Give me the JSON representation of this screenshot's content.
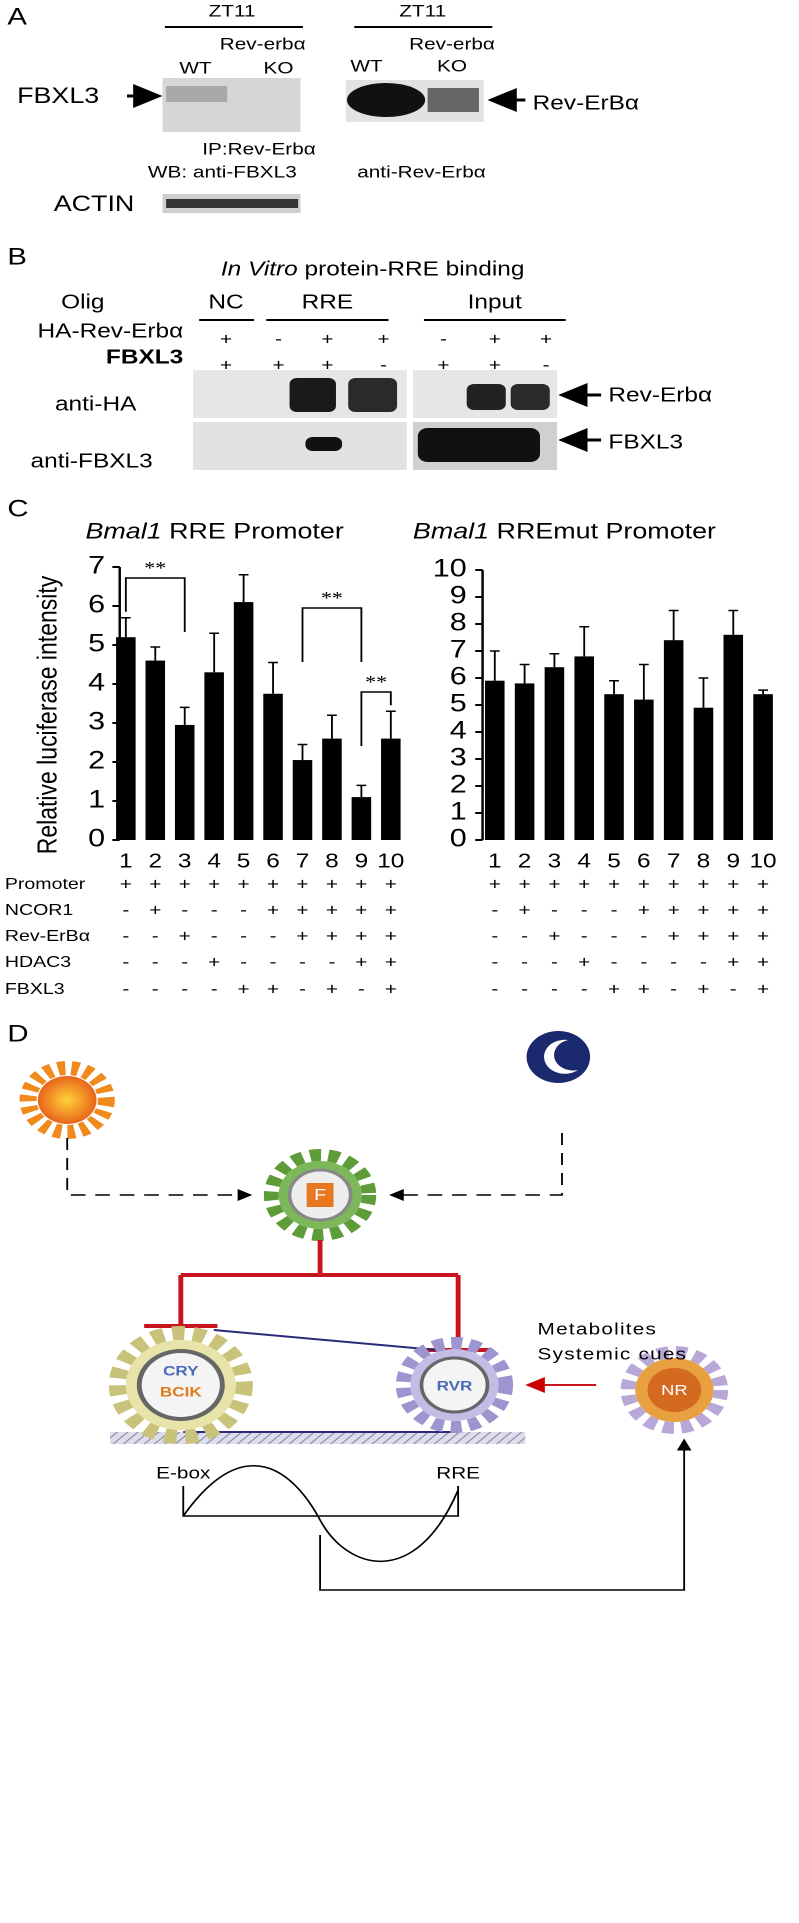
{
  "panel_a": {
    "label": "A",
    "left": {
      "time": "ZT11",
      "genotype": "Rev-erbα",
      "lanes": [
        "WT",
        "KO"
      ],
      "protein": "FBXL3",
      "wb": "WB: anti-FBXL3"
    },
    "right": {
      "time": "ZT11",
      "genotype": "Rev-erbα",
      "lanes": [
        "WT",
        "KO"
      ],
      "protein": "Rev-ErBα",
      "wb": "anti-Rev-Erbα"
    },
    "ip": "IP:Rev-Erbα",
    "loading": "ACTIN"
  },
  "panel_b": {
    "label": "B",
    "title_italic": "In Vitro",
    "title": "protein-RRE binding",
    "row_header": "Olig",
    "groups": [
      "NC",
      "RRE",
      "Input"
    ],
    "conditions": [
      {
        "label": "HA-Rev-Erbα",
        "signs": [
          "+",
          "-",
          "+",
          "+",
          "-",
          "+",
          "+"
        ]
      },
      {
        "label": "FBXL3",
        "signs": [
          "+",
          "+",
          "+",
          "-",
          "+",
          "+",
          "-"
        ]
      }
    ],
    "blots": [
      {
        "antibody": "anti-HA",
        "target": "Rev-Erbα"
      },
      {
        "antibody": "anti-FBXL3",
        "target": "FBXL3"
      }
    ]
  },
  "panel_c_label": "C",
  "chart_data": [
    {
      "type": "bar",
      "title_gene": "Bmal1",
      "title": "RRE Promoter",
      "ylabel": "Relative luciferase intensity",
      "categories": [
        "1",
        "2",
        "3",
        "4",
        "5",
        "6",
        "7",
        "8",
        "9",
        "10"
      ],
      "values": [
        5.2,
        4.6,
        2.95,
        4.3,
        6.1,
        3.75,
        2.05,
        2.6,
        1.1,
        2.6
      ],
      "errors": [
        0.5,
        0.35,
        0.45,
        1.0,
        0.7,
        0.8,
        0.4,
        0.6,
        0.3,
        0.7
      ],
      "color": "#000000",
      "ylim": [
        0,
        7
      ],
      "yticks": [
        0,
        1,
        2,
        3,
        4,
        5,
        6,
        7
      ],
      "significance": [
        "**",
        "**",
        "**"
      ],
      "condition_labels": [
        "Promoter",
        "NCOR1",
        "Rev-ErBα",
        "HDAC3",
        "FBXL3"
      ],
      "conditions": [
        [
          "+",
          "+",
          "+",
          "+",
          "+",
          "+",
          "+",
          "+",
          "+",
          "+"
        ],
        [
          "-",
          "+",
          "-",
          "-",
          "-",
          "+",
          "+",
          "+",
          "+",
          "+"
        ],
        [
          "-",
          "-",
          "+",
          "-",
          "-",
          "-",
          "+",
          "+",
          "+",
          "+"
        ],
        [
          "-",
          "-",
          "-",
          "+",
          "-",
          "-",
          "-",
          "-",
          "+",
          "+"
        ],
        [
          "-",
          "-",
          "-",
          "-",
          "+",
          "+",
          "-",
          "+",
          "-",
          "+"
        ]
      ]
    },
    {
      "type": "bar",
      "title_gene": "Bmal1",
      "title": "RREmut Promoter",
      "categories": [
        "1",
        "2",
        "3",
        "4",
        "5",
        "6",
        "7",
        "8",
        "9",
        "10"
      ],
      "values": [
        5.9,
        5.8,
        6.4,
        6.8,
        5.4,
        5.2,
        7.4,
        4.9,
        7.6,
        5.4
      ],
      "errors": [
        1.1,
        0.7,
        0.5,
        1.1,
        0.5,
        1.3,
        1.1,
        1.1,
        0.9,
        0.15
      ],
      "color": "#000000",
      "ylim": [
        0,
        10
      ],
      "yticks": [
        0,
        1,
        2,
        3,
        4,
        5,
        6,
        7,
        8,
        9,
        10
      ],
      "conditions": [
        [
          "+",
          "+",
          "+",
          "+",
          "+",
          "+",
          "+",
          "+",
          "+",
          "+"
        ],
        [
          "-",
          "+",
          "-",
          "-",
          "-",
          "+",
          "+",
          "+",
          "+",
          "+"
        ],
        [
          "-",
          "-",
          "+",
          "-",
          "-",
          "-",
          "+",
          "+",
          "+",
          "+"
        ],
        [
          "-",
          "-",
          "-",
          "+",
          "-",
          "-",
          "-",
          "-",
          "+",
          "+"
        ],
        [
          "-",
          "-",
          "-",
          "-",
          "+",
          "+",
          "-",
          "+",
          "-",
          "+"
        ]
      ]
    }
  ],
  "panel_d": {
    "label": "D",
    "cues": [
      "Metabolites",
      "Systemic cues"
    ],
    "elements": [
      "E-box",
      "RRE"
    ],
    "gears": [
      "F",
      "CRY",
      "BCIK",
      "RVR",
      "NR"
    ]
  }
}
